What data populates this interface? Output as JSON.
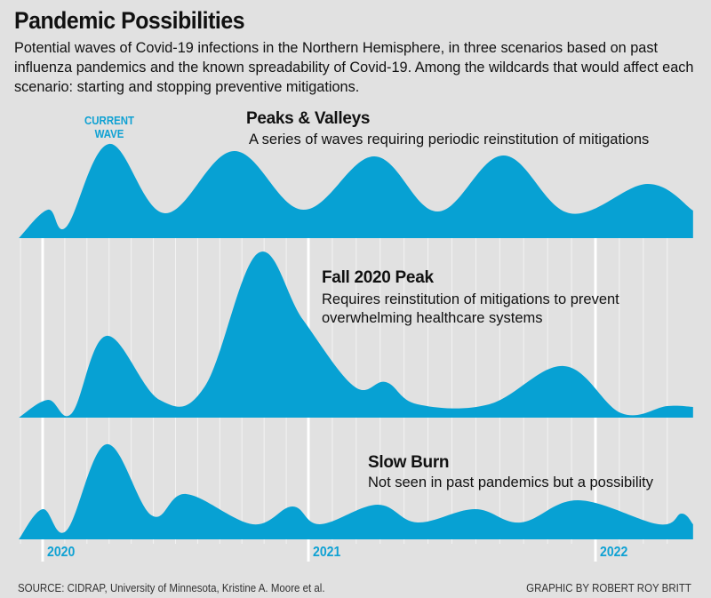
{
  "title": "Pandemic Possibilities",
  "subtitle": "Potential waves of Covid-19 infections in the Northern Hemisphere, in three scenarios based on past influenza pandemics and the known spreadability of Covid-19. Among the wildcards that would affect each scenario: starting and stopping preventive mitigations.",
  "current_wave_label": "CURRENT WAVE",
  "source": "SOURCE: CIDRAP, University of Minnesota, Kristine A. Moore et al.",
  "credit": "GRAPHIC BY ROBERT ROY BRITT",
  "colors": {
    "fill": "#07a1d3",
    "background": "#e1e1e1",
    "accent_text": "#0ea1d3"
  },
  "chart_data": {
    "type": "area",
    "xlabel": "",
    "ylabel": "",
    "x_ticks": [
      "2020",
      "2021",
      "2022"
    ],
    "xlim": [
      2019.91,
      2022.34
    ],
    "y_units": "relative infections (unlabeled)",
    "grid": "vertical monthly lines",
    "series": [
      {
        "name": "Peaks & Valleys",
        "description": "A series of waves requiring periodic reinstitution of mitigations",
        "x": [
          2019.91,
          2020.02,
          2020.09,
          2020.25,
          2020.46,
          2020.72,
          2020.98,
          2021.23,
          2021.45,
          2021.68,
          2021.91,
          2022.18,
          2022.34
        ],
        "y": [
          0,
          32,
          13,
          106,
          28,
          98,
          32,
          92,
          30,
          93,
          28,
          61,
          31
        ]
      },
      {
        "name": "Fall 2020 Peak",
        "description": "Requires reinstitution of mitigations to prevent overwhelming healthcare systems",
        "x": [
          2019.91,
          2020.02,
          2020.11,
          2020.24,
          2020.44,
          2020.61,
          2020.81,
          2020.98,
          2021.16,
          2021.27,
          2021.38,
          2021.63,
          2021.89,
          2022.09,
          2022.25,
          2022.34
        ],
        "y": [
          0,
          20,
          5,
          92,
          20,
          35,
          185,
          110,
          35,
          40,
          15,
          15,
          58,
          5,
          13,
          12
        ]
      },
      {
        "name": "Slow Burn",
        "description": "Not seen in past pandemics but a possibility",
        "x": [
          2019.91,
          2020.0,
          2020.09,
          2020.24,
          2020.41,
          2020.54,
          2020.79,
          2020.94,
          2021.04,
          2021.24,
          2021.38,
          2021.58,
          2021.74,
          2021.94,
          2022.22,
          2022.3,
          2022.34
        ],
        "y": [
          0,
          34,
          10,
          107,
          27,
          51,
          17,
          37,
          17,
          39,
          19,
          34,
          19,
          44,
          17,
          29,
          17
        ]
      }
    ]
  }
}
